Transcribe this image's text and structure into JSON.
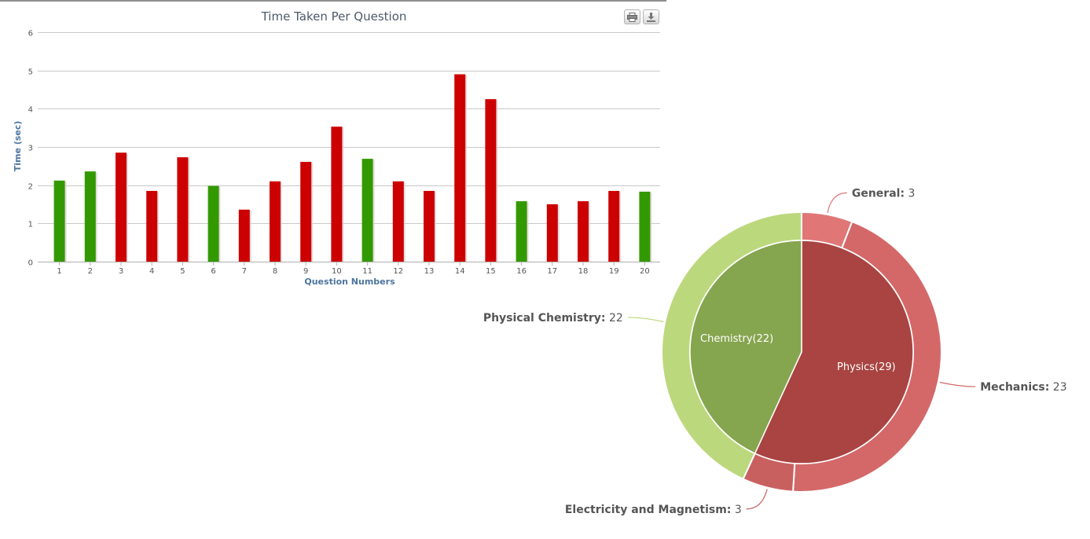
{
  "chart_data": [
    {
      "type": "bar",
      "title": "Time Taken Per Question",
      "xlabel": "Question Numbers",
      "ylabel": "Time (sec)",
      "ylim": [
        0,
        6
      ],
      "yticks": [
        0,
        1,
        2,
        3,
        4,
        5,
        6
      ],
      "grid": true,
      "categories": [
        "1",
        "2",
        "3",
        "4",
        "5",
        "6",
        "7",
        "8",
        "9",
        "10",
        "11",
        "12",
        "13",
        "14",
        "15",
        "16",
        "17",
        "18",
        "19",
        "20"
      ],
      "values": [
        2.12,
        2.36,
        2.85,
        1.85,
        2.73,
        1.98,
        1.36,
        2.1,
        2.61,
        3.53,
        2.69,
        2.1,
        1.85,
        4.9,
        4.25,
        1.58,
        1.5,
        1.58,
        1.85,
        1.83
      ],
      "status": [
        "correct",
        "correct",
        "incorrect",
        "incorrect",
        "incorrect",
        "correct",
        "incorrect",
        "incorrect",
        "incorrect",
        "incorrect",
        "correct",
        "incorrect",
        "incorrect",
        "incorrect",
        "incorrect",
        "correct",
        "incorrect",
        "incorrect",
        "incorrect",
        "correct"
      ],
      "colors": {
        "correct": "#339900",
        "incorrect": "#cc0000"
      }
    },
    {
      "type": "pie",
      "inner": [
        {
          "label": "Physics(29)",
          "value": 29,
          "color": "#a94442"
        },
        {
          "label": "Chemistry(22)",
          "value": 22,
          "color": "#86a54f"
        }
      ],
      "outer": [
        {
          "name": "General",
          "value": 3,
          "color": "#e07676"
        },
        {
          "name": "Mechanics",
          "value": 23,
          "color": "#d46868"
        },
        {
          "name": "Electricity and Magnetism",
          "value": 3,
          "color": "#c96060"
        },
        {
          "name": "Physical Chemistry",
          "value": 22,
          "color": "#bcd87d"
        }
      ]
    }
  ],
  "toolbar": {
    "print_icon": "printer-icon",
    "export_icon": "download-icon"
  }
}
